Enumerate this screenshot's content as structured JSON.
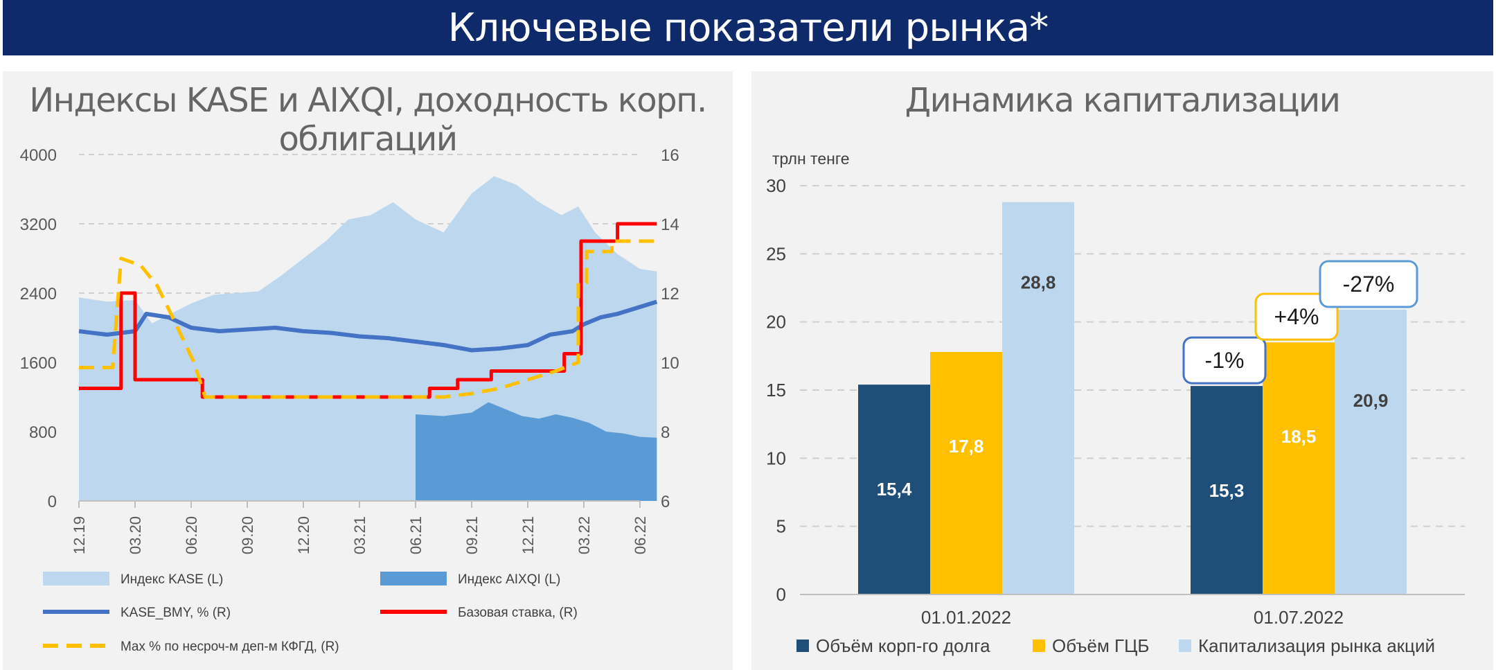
{
  "banner": {
    "title": "Ключевые показатели рынка*"
  },
  "left_chart": {
    "title": "Индексы KASE и AIXQI, доходность корп. облигаций",
    "chart_data": {
      "type": "area",
      "x_ticks": [
        "12.19",
        "03.20",
        "06.20",
        "09.20",
        "12.20",
        "03.21",
        "06.21",
        "09.21",
        "12.21",
        "03.22",
        "06.22"
      ],
      "y_left": {
        "ticks": [
          "0",
          "800",
          "1600",
          "2400",
          "3200",
          "4000"
        ],
        "range": [
          0,
          4000
        ]
      },
      "y_right": {
        "ticks": [
          "6",
          "8",
          "10",
          "12",
          "14",
          "16"
        ],
        "range": [
          6,
          16
        ]
      },
      "series": [
        {
          "name": "Индекс KASE (L)",
          "axis": "left",
          "kind": "area",
          "color": "#bdd7ee",
          "points": [
            [
              0,
              2350
            ],
            [
              0.5,
              2300
            ],
            [
              1,
              2320
            ],
            [
              1.3,
              2050
            ],
            [
              1.6,
              2150
            ],
            [
              2,
              2280
            ],
            [
              2.4,
              2380
            ],
            [
              2.8,
              2400
            ],
            [
              3.2,
              2420
            ],
            [
              3.6,
              2600
            ],
            [
              4,
              2800
            ],
            [
              4.4,
              3000
            ],
            [
              4.8,
              3250
            ],
            [
              5.2,
              3300
            ],
            [
              5.6,
              3450
            ],
            [
              6,
              3250
            ],
            [
              6.5,
              3100
            ],
            [
              7,
              3550
            ],
            [
              7.4,
              3750
            ],
            [
              7.8,
              3650
            ],
            [
              8.2,
              3450
            ],
            [
              8.6,
              3300
            ],
            [
              8.9,
              3400
            ],
            [
              9.2,
              3100
            ],
            [
              9.6,
              2850
            ],
            [
              10,
              2680
            ],
            [
              10.3,
              2650
            ]
          ]
        },
        {
          "name": "Индекс AIXQI (L)",
          "axis": "left",
          "kind": "area",
          "color": "#5b9bd5",
          "points": [
            [
              6,
              1000
            ],
            [
              6.5,
              980
            ],
            [
              7,
              1020
            ],
            [
              7.3,
              1140
            ],
            [
              7.6,
              1060
            ],
            [
              7.9,
              980
            ],
            [
              8.2,
              950
            ],
            [
              8.5,
              1000
            ],
            [
              8.8,
              960
            ],
            [
              9.1,
              900
            ],
            [
              9.4,
              800
            ],
            [
              9.7,
              780
            ],
            [
              10,
              740
            ],
            [
              10.3,
              730
            ]
          ]
        },
        {
          "name": "KASE_BMY, % (R)",
          "axis": "right",
          "kind": "line",
          "color": "#4472c4",
          "points": [
            [
              0,
              10.9
            ],
            [
              0.5,
              10.8
            ],
            [
              1,
              10.9
            ],
            [
              1.2,
              11.4
            ],
            [
              1.6,
              11.3
            ],
            [
              2,
              11.0
            ],
            [
              2.5,
              10.9
            ],
            [
              3,
              10.95
            ],
            [
              3.5,
              11.0
            ],
            [
              4,
              10.9
            ],
            [
              4.5,
              10.85
            ],
            [
              5,
              10.75
            ],
            [
              5.5,
              10.7
            ],
            [
              6,
              10.6
            ],
            [
              6.5,
              10.5
            ],
            [
              7,
              10.35
            ],
            [
              7.5,
              10.4
            ],
            [
              8,
              10.5
            ],
            [
              8.4,
              10.8
            ],
            [
              8.8,
              10.9
            ],
            [
              9,
              11.1
            ],
            [
              9.3,
              11.3
            ],
            [
              9.6,
              11.4
            ],
            [
              10,
              11.6
            ],
            [
              10.3,
              11.75
            ]
          ]
        },
        {
          "name": "Базовая ставка, (R)",
          "axis": "right",
          "kind": "step",
          "color": "#ff0000",
          "points": [
            [
              0,
              9.25
            ],
            [
              0.75,
              9.25
            ],
            [
              0.75,
              12.0
            ],
            [
              1.0,
              12.0
            ],
            [
              1.0,
              9.5
            ],
            [
              2.2,
              9.5
            ],
            [
              2.2,
              9.0
            ],
            [
              6.25,
              9.0
            ],
            [
              6.25,
              9.25
            ],
            [
              6.75,
              9.25
            ],
            [
              6.75,
              9.5
            ],
            [
              7.35,
              9.5
            ],
            [
              7.35,
              9.75
            ],
            [
              8.65,
              9.75
            ],
            [
              8.65,
              10.25
            ],
            [
              8.95,
              10.25
            ],
            [
              8.95,
              13.5
            ],
            [
              9.6,
              13.5
            ],
            [
              9.6,
              14.0
            ],
            [
              10.3,
              14.0
            ]
          ]
        },
        {
          "name": "Max % по несроч-м деп-м КФГД, (R)",
          "axis": "right",
          "kind": "step-dashed",
          "color": "#ffc000",
          "points": [
            [
              0,
              9.85
            ],
            [
              0.6,
              9.85
            ],
            [
              0.75,
              13.0
            ],
            [
              1.1,
              12.8
            ],
            [
              1.4,
              12.2
            ],
            [
              1.7,
              11.2
            ],
            [
              2.05,
              10.0
            ],
            [
              2.25,
              9.0
            ],
            [
              6.5,
              9.0
            ],
            [
              7,
              9.1
            ],
            [
              7.5,
              9.25
            ],
            [
              8,
              9.5
            ],
            [
              8.5,
              9.75
            ],
            [
              8.9,
              10.0
            ],
            [
              8.9,
              12.3
            ],
            [
              9.05,
              12.3
            ],
            [
              9.05,
              13.2
            ],
            [
              9.5,
              13.2
            ],
            [
              9.5,
              13.5
            ],
            [
              10.3,
              13.5
            ]
          ]
        }
      ],
      "legend": [
        {
          "name": "Индекс KASE (L)",
          "color": "#bdd7ee",
          "style": "box"
        },
        {
          "name": "Индекс AIXQI (L)",
          "color": "#5b9bd5",
          "style": "box"
        },
        {
          "name": "KASE_BMY, % (R)",
          "color": "#4472c4",
          "style": "line"
        },
        {
          "name": "Базовая ставка, (R)",
          "color": "#ff0000",
          "style": "line"
        },
        {
          "name": "Max % по несроч-м деп-м КФГД, (R)",
          "color": "#ffc000",
          "style": "dashed"
        }
      ],
      "legend_position": "bottom",
      "grid": true
    }
  },
  "right_chart": {
    "title": "Динамика капитализации",
    "chart_data": {
      "type": "bar",
      "ylabel": "трлн тенге",
      "ylim": [
        0,
        30
      ],
      "y_ticks": [
        "0",
        "5",
        "10",
        "15",
        "20",
        "25",
        "30"
      ],
      "categories": [
        "01.01.2022",
        "01.07.2022"
      ],
      "series": [
        {
          "name": "Объём корп-го долга",
          "color": "#1f4e79",
          "label_color": "#ffffff",
          "values": [
            15.4,
            15.3
          ],
          "labels": [
            "15,4",
            "15,3"
          ]
        },
        {
          "name": "Объём ГЦБ",
          "color": "#ffc000",
          "label_color": "#ffffff",
          "values": [
            17.8,
            18.5
          ],
          "labels": [
            "17,8",
            "18,5"
          ]
        },
        {
          "name": "Капитализация рынка акций",
          "color": "#bdd7ee",
          "label_color": "#404040",
          "values": [
            28.8,
            20.9
          ],
          "labels": [
            "28,8",
            "20,9"
          ]
        }
      ],
      "annotations": [
        {
          "series": 0,
          "category": 1,
          "text": "-1%",
          "border": "#4472c4"
        },
        {
          "series": 1,
          "category": 1,
          "text": "+4%",
          "border": "#ffc000"
        },
        {
          "series": 2,
          "category": 1,
          "text": "-27%",
          "border": "#5b9bd5"
        }
      ],
      "legend_position": "bottom",
      "grid": true
    }
  }
}
